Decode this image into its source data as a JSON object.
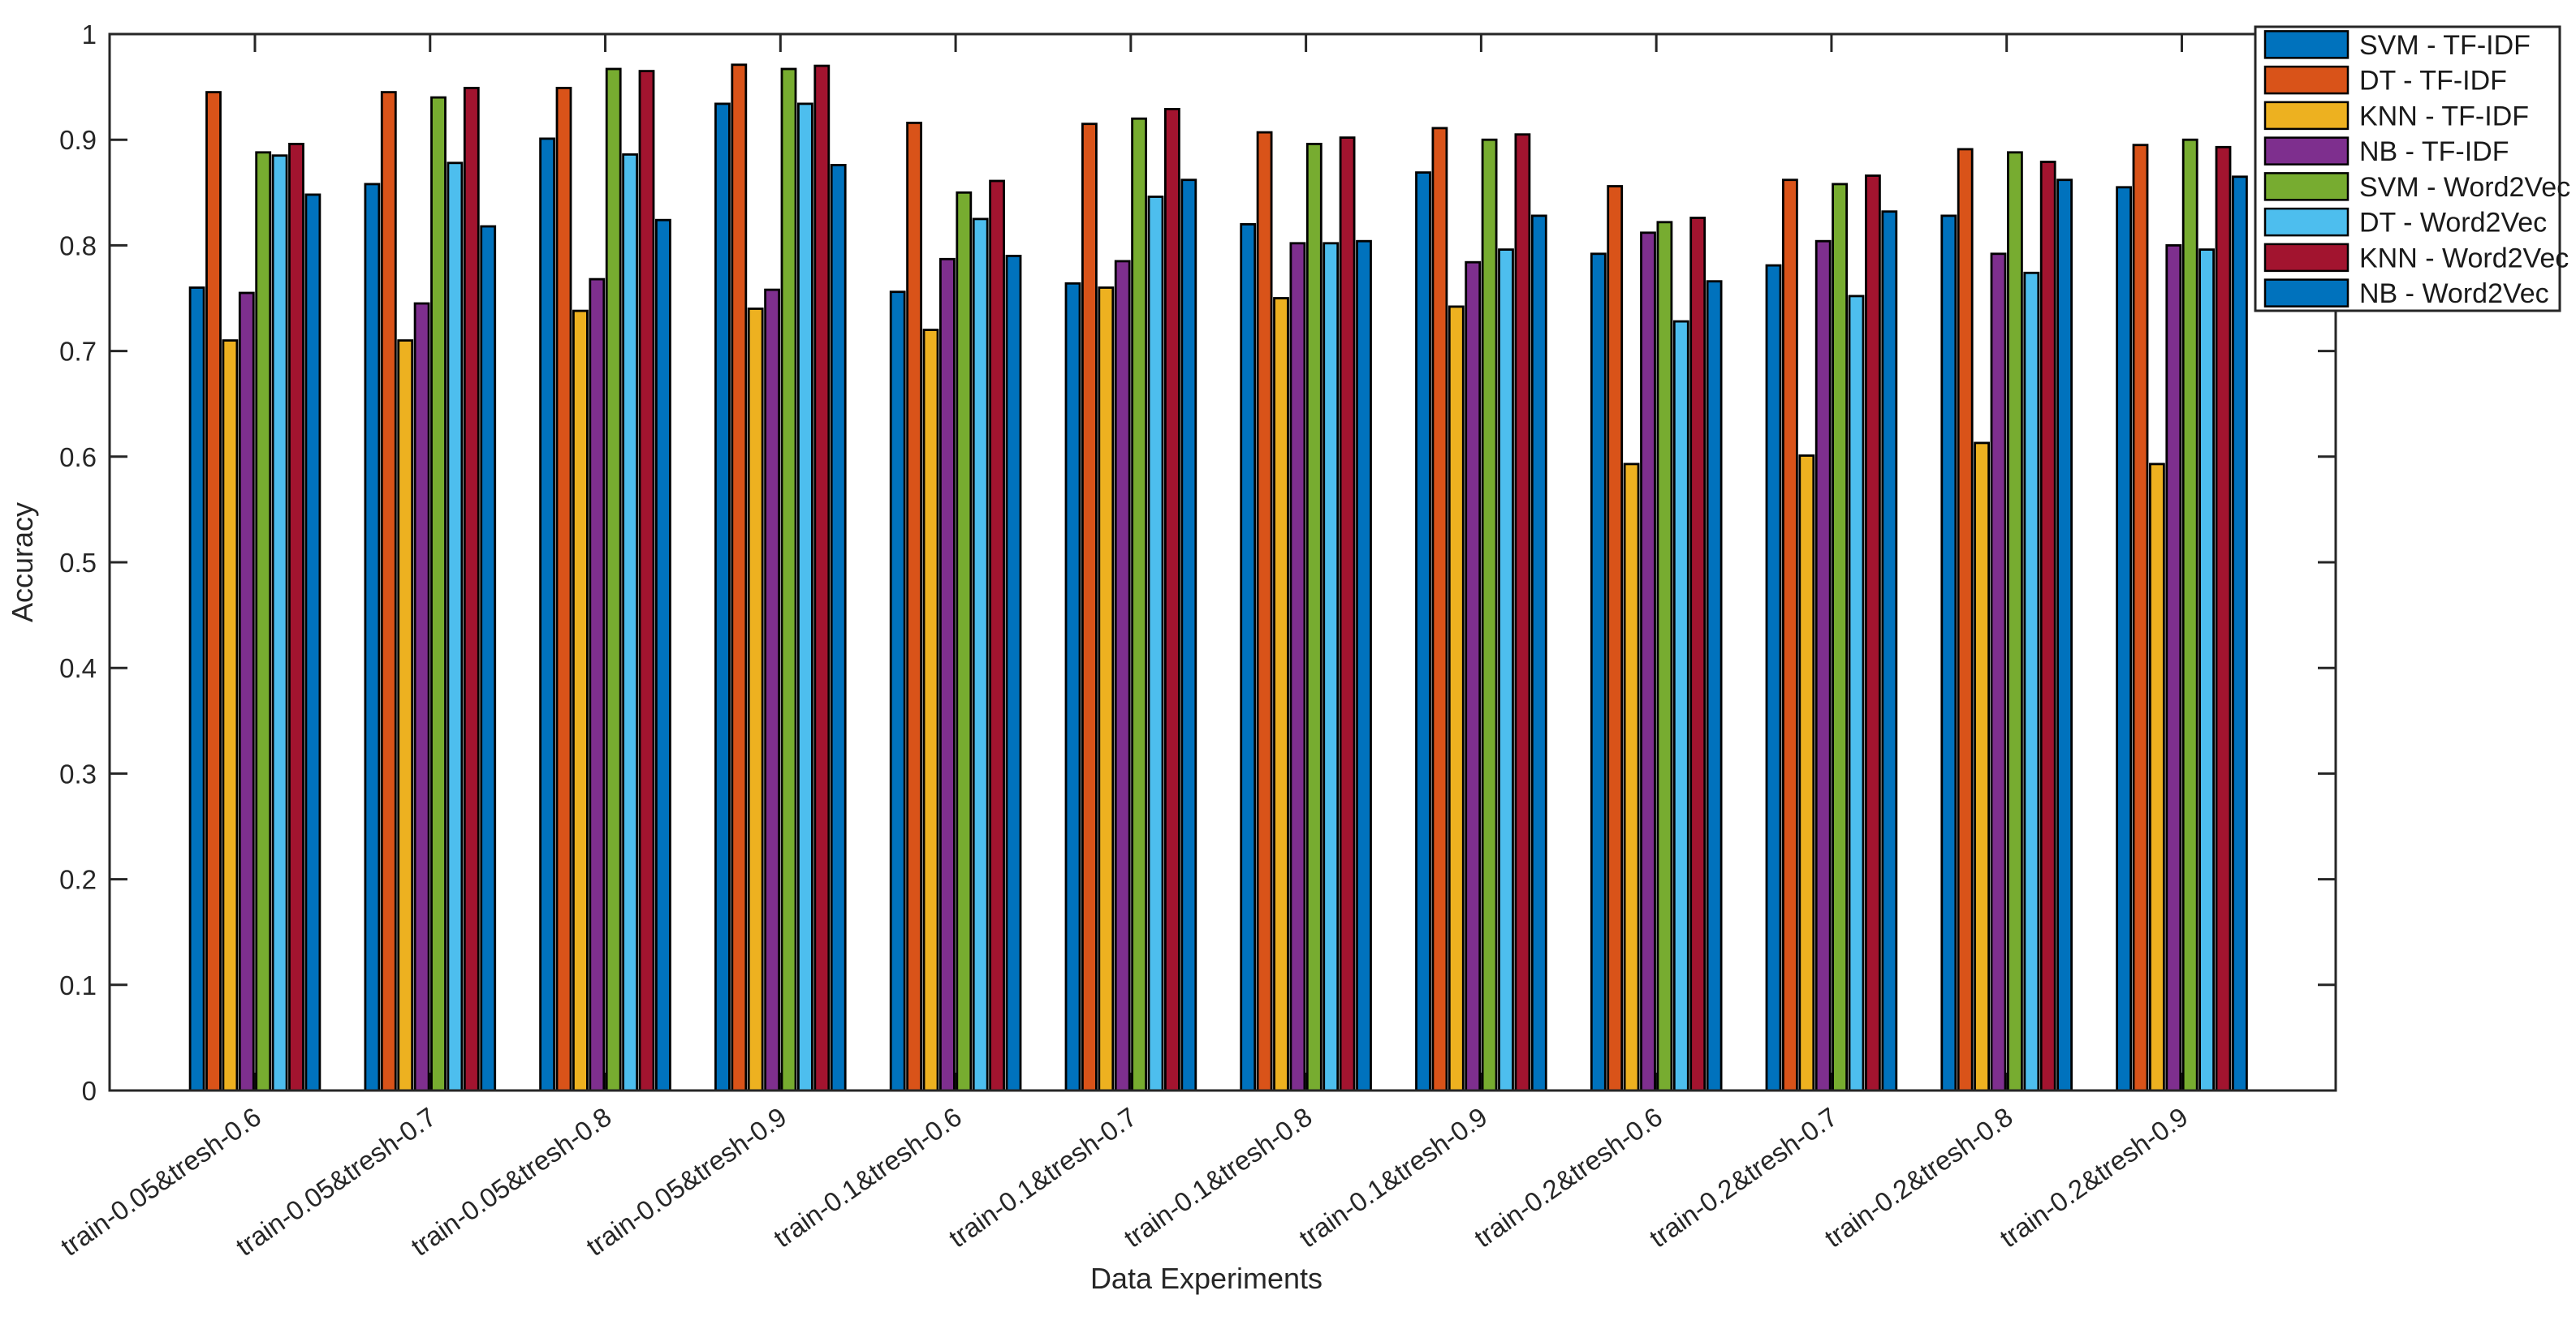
{
  "chart_data": {
    "type": "bar",
    "title": "",
    "xlabel": "Data Experiments",
    "ylabel": "Accuracy",
    "ylim": [
      0,
      1
    ],
    "ytick_labels": [
      "0",
      "0.1",
      "0.2",
      "0.3",
      "0.4",
      "0.5",
      "0.6",
      "0.7",
      "0.8",
      "0.9",
      "1"
    ],
    "grid": false,
    "legend_position": "top-right",
    "axis_color": "#262626",
    "bar_edge_color": "#000000",
    "background_color": "#ffffff",
    "categories": [
      "train-0.05&tresh-0.6",
      "train-0.05&tresh-0.7",
      "train-0.05&tresh-0.8",
      "train-0.05&tresh-0.9",
      "train-0.1&tresh-0.6",
      "train-0.1&tresh-0.7",
      "train-0.1&tresh-0.8",
      "train-0.1&tresh-0.9",
      "train-0.2&tresh-0.6",
      "train-0.2&tresh-0.7",
      "train-0.2&tresh-0.8",
      "train-0.2&tresh-0.9"
    ],
    "series": [
      {
        "name": "SVM - TF-IDF",
        "color": "#0072BD",
        "values": [
          0.76,
          0.858,
          0.901,
          0.934,
          0.756,
          0.764,
          0.82,
          0.869,
          0.792,
          0.781,
          0.828,
          0.855
        ]
      },
      {
        "name": "DT - TF-IDF",
        "color": "#D95319",
        "values": [
          0.945,
          0.945,
          0.949,
          0.971,
          0.916,
          0.915,
          0.907,
          0.911,
          0.856,
          0.862,
          0.891,
          0.895
        ]
      },
      {
        "name": "KNN - TF-IDF",
        "color": "#EDB120",
        "values": [
          0.71,
          0.71,
          0.738,
          0.74,
          0.72,
          0.76,
          0.75,
          0.742,
          0.593,
          0.601,
          0.613,
          0.593
        ]
      },
      {
        "name": "NB - TF-IDF",
        "color": "#7E2F8E",
        "values": [
          0.755,
          0.745,
          0.768,
          0.758,
          0.787,
          0.785,
          0.802,
          0.784,
          0.812,
          0.804,
          0.792,
          0.8
        ]
      },
      {
        "name": "SVM - Word2Vec",
        "color": "#77AC30",
        "values": [
          0.888,
          0.94,
          0.967,
          0.967,
          0.85,
          0.92,
          0.896,
          0.9,
          0.822,
          0.858,
          0.888,
          0.9
        ]
      },
      {
        "name": "DT - Word2Vec",
        "color": "#4DBEEE",
        "values": [
          0.885,
          0.878,
          0.886,
          0.934,
          0.825,
          0.846,
          0.802,
          0.796,
          0.728,
          0.752,
          0.774,
          0.796
        ]
      },
      {
        "name": "KNN - Word2Vec",
        "color": "#A2142F",
        "values": [
          0.896,
          0.949,
          0.965,
          0.97,
          0.861,
          0.929,
          0.902,
          0.905,
          0.826,
          0.866,
          0.879,
          0.893
        ]
      },
      {
        "name": "NB - Word2Vec",
        "color": "#0072BD",
        "values": [
          0.848,
          0.818,
          0.824,
          0.876,
          0.79,
          0.862,
          0.804,
          0.828,
          0.766,
          0.832,
          0.862,
          0.865
        ]
      }
    ]
  }
}
